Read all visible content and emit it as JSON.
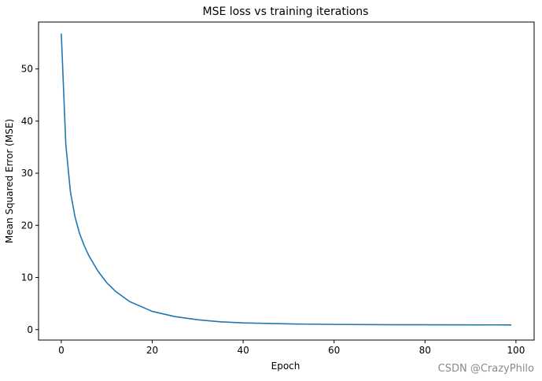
{
  "chart_data": {
    "type": "line",
    "title": "MSE loss vs training iterations",
    "xlabel": "Epoch",
    "ylabel": "Mean Squared Error (MSE)",
    "xlim": [
      -5,
      104
    ],
    "ylim": [
      -2,
      59
    ],
    "xticks": [
      0,
      20,
      40,
      60,
      80,
      100
    ],
    "yticks": [
      0,
      10,
      20,
      30,
      40,
      50
    ],
    "grid": false,
    "series": [
      {
        "name": "MSE",
        "color": "#1f77b4",
        "x": [
          0,
          1,
          2,
          3,
          4,
          5,
          6,
          8,
          10,
          12,
          15,
          20,
          25,
          30,
          35,
          40,
          50,
          60,
          70,
          80,
          90,
          99
        ],
        "y": [
          56.8,
          35.5,
          26.5,
          21.7,
          18.5,
          16.2,
          14.3,
          11.3,
          9.0,
          7.3,
          5.4,
          3.5,
          2.5,
          1.9,
          1.5,
          1.3,
          1.1,
          1.0,
          0.95,
          0.93,
          0.92,
          0.9
        ]
      }
    ]
  },
  "watermark": "CSDN @CrazyPhilo"
}
